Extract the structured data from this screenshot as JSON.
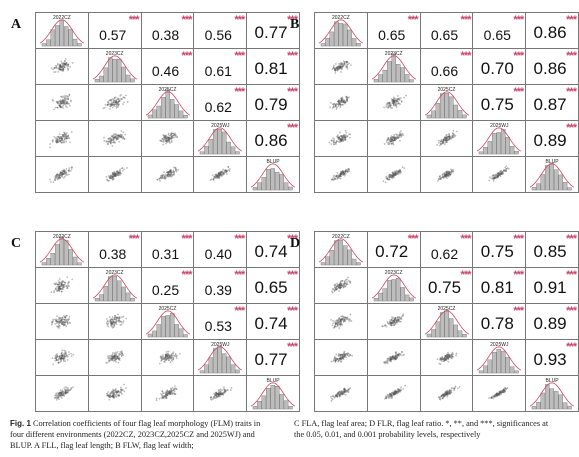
{
  "panels": [
    {
      "letter": "A",
      "labels": [
        "2022CZ",
        "2023CZ",
        "2025CZ",
        "2025WJ",
        "BLUP"
      ],
      "corr": [
        [
          "0.57",
          "0.38",
          "0.56",
          "0.77"
        ],
        [
          "0.46",
          "0.61",
          "0.81"
        ],
        [
          "0.62",
          "0.79"
        ],
        [
          "0.86"
        ]
      ],
      "stars": "***"
    },
    {
      "letter": "B",
      "labels": [
        "2022CZ",
        "2023CZ",
        "2025CZ",
        "2025WJ",
        "BLUP"
      ],
      "corr": [
        [
          "0.65",
          "0.65",
          "0.65",
          "0.86"
        ],
        [
          "0.66",
          "0.70",
          "0.86"
        ],
        [
          "0.75",
          "0.87"
        ],
        [
          "0.89"
        ]
      ],
      "stars": "***"
    },
    {
      "letter": "C",
      "labels": [
        "2022CZ",
        "2023CZ",
        "2025CZ",
        "2025WJ",
        "BLUP"
      ],
      "corr": [
        [
          "0.38",
          "0.31",
          "0.40",
          "0.74"
        ],
        [
          "0.25",
          "0.39",
          "0.65"
        ],
        [
          "0.53",
          "0.74"
        ],
        [
          "0.77"
        ]
      ],
      "stars": "***"
    },
    {
      "letter": "D",
      "labels": [
        "2022CZ",
        "2023CZ",
        "2025CZ",
        "2025WJ",
        "BLUP"
      ],
      "corr": [
        [
          "0.72",
          "0.62",
          "0.75",
          "0.85"
        ],
        [
          "0.75",
          "0.81",
          "0.91"
        ],
        [
          "0.78",
          "0.89"
        ],
        [
          "0.93"
        ]
      ],
      "stars": "***"
    }
  ],
  "caption": {
    "fig_label": "Fig. 1",
    "left_text": "Correlation coefficients of four flag leaf morphology (FLM) traits in four different environments (2022CZ, 2023CZ,2025CZ and 2025WJ) and BLUP. A FLL, flag leaf length; B FLW, flag leaf width;",
    "right_text": "C FLA, flag leaf area; D FLR, flag leaf ratio. *, **, and ***, significances at the 0.05, 0.01, and 0.001 probability levels, respectively"
  },
  "colors": {
    "stars": "#c8466a",
    "density": "#d0455f",
    "hist": "#bdbdbd",
    "points": "#555555"
  }
}
